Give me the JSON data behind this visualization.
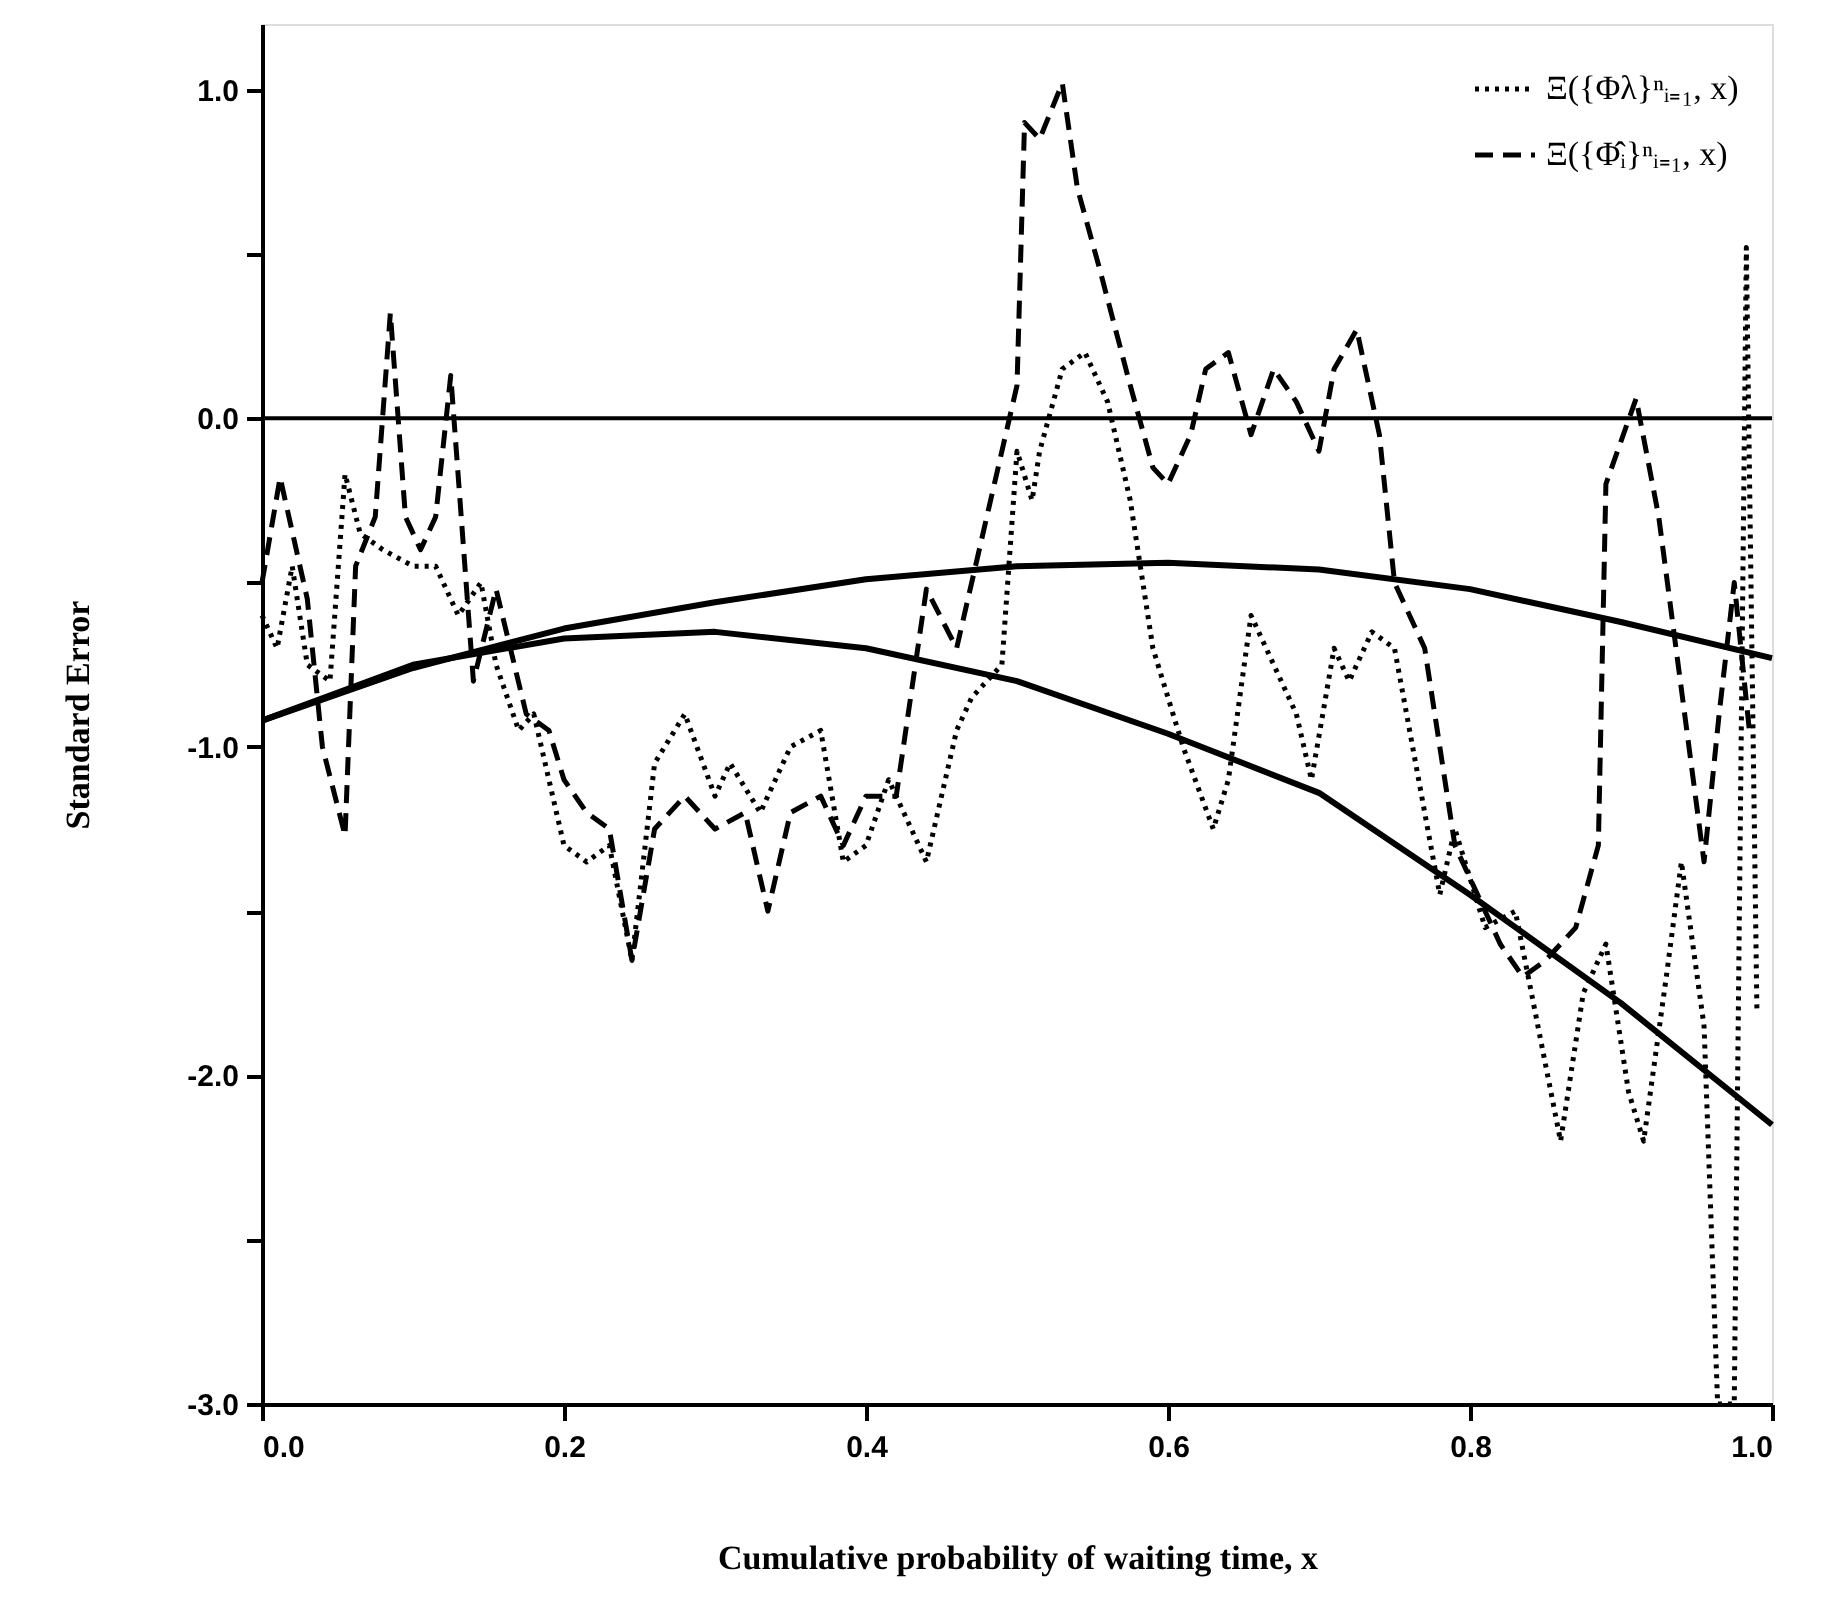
{
  "chart_data": {
    "type": "line",
    "xlabel": "Cumulative probability of waiting time, x",
    "ylabel": "Standard Error",
    "xlim": [
      0,
      1
    ],
    "ylim": [
      -3,
      1.2
    ],
    "xticks": [
      {
        "value": 0,
        "label": "0.0"
      },
      {
        "value": 0.2,
        "label": "0.2"
      },
      {
        "value": 0.4,
        "label": "0.4"
      },
      {
        "value": 0.6,
        "label": "0.6"
      },
      {
        "value": 0.8,
        "label": "0.8"
      },
      {
        "value": 1,
        "label": "1.0"
      }
    ],
    "yticks": [
      {
        "value": 1,
        "label": "1.0"
      },
      {
        "value": 0.5,
        "label": null
      },
      {
        "value": 0,
        "label": "0.0"
      },
      {
        "value": -0.5,
        "label": null
      },
      {
        "value": -1,
        "label": "-1.0"
      },
      {
        "value": -1.5,
        "label": null
      },
      {
        "value": -2,
        "label": "-2.0"
      },
      {
        "value": -2.5,
        "label": null
      },
      {
        "value": -3,
        "label": "-3.0"
      }
    ],
    "grid": false,
    "legend": "top right",
    "ref_lines": [
      {
        "axis": "y",
        "value": 0,
        "label": null,
        "color": "#000000"
      }
    ],
    "series": [
      {
        "name": "Ξ({Φλ}ⁿᵢ₌₁, x)",
        "color": "#000000",
        "line_style": "dotted",
        "x": [
          0.0,
          0.01,
          0.02,
          0.03,
          0.045,
          0.055,
          0.065,
          0.08,
          0.1,
          0.115,
          0.13,
          0.145,
          0.155,
          0.17,
          0.18,
          0.2,
          0.215,
          0.23,
          0.245,
          0.26,
          0.28,
          0.3,
          0.31,
          0.33,
          0.35,
          0.37,
          0.385,
          0.4,
          0.415,
          0.44,
          0.46,
          0.47,
          0.49,
          0.5,
          0.51,
          0.515,
          0.53,
          0.545,
          0.56,
          0.575,
          0.59,
          0.61,
          0.63,
          0.64,
          0.655,
          0.67,
          0.685,
          0.695,
          0.71,
          0.72,
          0.735,
          0.75,
          0.76,
          0.78,
          0.79,
          0.8,
          0.81,
          0.83,
          0.845,
          0.86,
          0.875,
          0.89,
          0.905,
          0.915,
          0.93,
          0.94,
          0.955,
          0.964,
          0.975,
          0.983,
          0.99
        ],
        "values": [
          -0.6,
          -0.7,
          -0.45,
          -0.75,
          -0.8,
          -0.17,
          -0.35,
          -0.4,
          -0.45,
          -0.45,
          -0.6,
          -0.5,
          -0.75,
          -0.95,
          -0.9,
          -1.3,
          -1.35,
          -1.3,
          -1.65,
          -1.05,
          -0.9,
          -1.15,
          -1.05,
          -1.2,
          -1.0,
          -0.95,
          -1.35,
          -1.3,
          -1.1,
          -1.35,
          -0.95,
          -0.85,
          -0.75,
          -0.1,
          -0.25,
          -0.1,
          0.15,
          0.2,
          0.05,
          -0.25,
          -0.7,
          -1.0,
          -1.25,
          -1.1,
          -0.6,
          -0.75,
          -0.9,
          -1.1,
          -0.7,
          -0.8,
          -0.65,
          -0.7,
          -0.95,
          -1.45,
          -1.25,
          -1.4,
          -1.55,
          -1.5,
          -1.85,
          -2.2,
          -1.75,
          -1.6,
          -2.05,
          -2.2,
          -1.7,
          -1.35,
          -1.85,
          -3.0,
          -3.0,
          0.52,
          -1.8
        ]
      },
      {
        "name": "Ξ({Φ̂ᵢ}ⁿᵢ₌₁, x)",
        "color": "#000000",
        "line_style": "dashed",
        "x": [
          0.0,
          0.012,
          0.03,
          0.04,
          0.055,
          0.062,
          0.075,
          0.085,
          0.095,
          0.105,
          0.115,
          0.125,
          0.14,
          0.155,
          0.175,
          0.19,
          0.2,
          0.215,
          0.23,
          0.245,
          0.26,
          0.28,
          0.3,
          0.32,
          0.335,
          0.35,
          0.37,
          0.385,
          0.4,
          0.42,
          0.44,
          0.46,
          0.48,
          0.5,
          0.505,
          0.515,
          0.53,
          0.54,
          0.555,
          0.575,
          0.59,
          0.6,
          0.615,
          0.625,
          0.64,
          0.655,
          0.67,
          0.685,
          0.7,
          0.71,
          0.725,
          0.74,
          0.75,
          0.77,
          0.79,
          0.82,
          0.835,
          0.85,
          0.87,
          0.885,
          0.89,
          0.91,
          0.925,
          0.945,
          0.955,
          0.965,
          0.975,
          0.985
        ],
        "values": [
          -0.5,
          -0.18,
          -0.55,
          -1.0,
          -1.27,
          -0.45,
          -0.3,
          0.32,
          -0.3,
          -0.4,
          -0.3,
          0.13,
          -0.8,
          -0.52,
          -0.9,
          -0.95,
          -1.1,
          -1.2,
          -1.25,
          -1.65,
          -1.25,
          -1.15,
          -1.25,
          -1.2,
          -1.5,
          -1.2,
          -1.15,
          -1.3,
          -1.15,
          -1.15,
          -0.52,
          -0.7,
          -0.3,
          0.1,
          0.9,
          0.85,
          1.02,
          0.7,
          0.45,
          0.1,
          -0.15,
          -0.2,
          -0.05,
          0.15,
          0.2,
          -0.05,
          0.15,
          0.05,
          -0.1,
          0.15,
          0.27,
          -0.05,
          -0.5,
          -0.7,
          -1.3,
          -1.6,
          -1.7,
          -1.65,
          -1.55,
          -1.3,
          -0.2,
          0.06,
          -0.3,
          -1.0,
          -1.35,
          -0.9,
          -0.5,
          -0.95
        ]
      },
      {
        "color": "#000000",
        "line_style": "solid",
        "x": [
          0,
          0.1,
          0.2,
          0.3,
          0.4,
          0.5,
          0.6,
          0.7,
          0.8,
          0.9,
          1.0
        ],
        "values": [
          -0.92,
          -0.76,
          -0.64,
          -0.56,
          -0.49,
          -0.45,
          -0.44,
          -0.46,
          -0.52,
          -0.62,
          -0.73
        ]
      },
      {
        "color": "#000000",
        "line_style": "solid",
        "x": [
          0,
          0.1,
          0.2,
          0.3,
          0.4,
          0.5,
          0.6,
          0.7,
          0.8,
          0.9,
          1.0
        ],
        "values": [
          -0.92,
          -0.75,
          -0.67,
          -0.65,
          -0.7,
          -0.8,
          -0.96,
          -1.14,
          -1.45,
          -1.78,
          -2.15
        ]
      }
    ]
  }
}
